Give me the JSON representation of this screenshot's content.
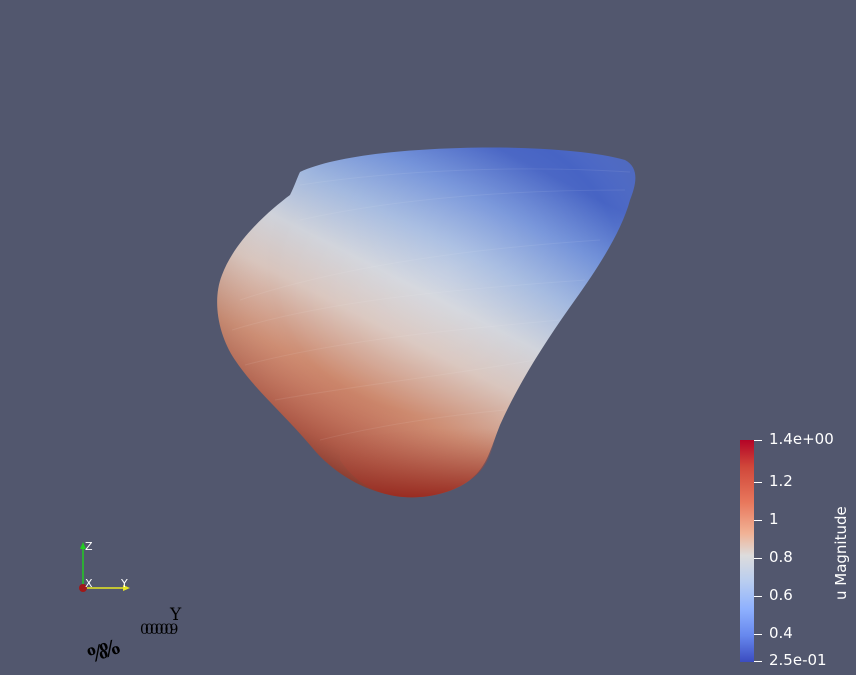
{
  "viewport": {
    "background": "#52576e"
  },
  "colormap": {
    "name": "Cool to Warm",
    "high_color": "#b40426",
    "mid_color": "#dddcdc",
    "low_color": "#3b4cc0"
  },
  "legend": {
    "title": "u Magnitude",
    "labels": [
      {
        "text": "1.4e+00",
        "value": 1.4
      },
      {
        "text": "1.2",
        "value": 1.2
      },
      {
        "text": "1",
        "value": 1.0
      },
      {
        "text": "0.8",
        "value": 0.8
      },
      {
        "text": "0.6",
        "value": 0.6
      },
      {
        "text": "0.4",
        "value": 0.4
      },
      {
        "text": "2.5e-01",
        "value": 0.25
      }
    ],
    "range": [
      0.25,
      1.4
    ]
  },
  "orientation_axes": {
    "z_label": "Z",
    "x_label": "X",
    "y_label": "Y",
    "z_color": "#22cc22",
    "y_color": "#e8e822",
    "x_color": "#cc2222"
  },
  "stray_text": {
    "y_label": "Y",
    "overlap_text": "0000009",
    "glyph": "%%"
  }
}
